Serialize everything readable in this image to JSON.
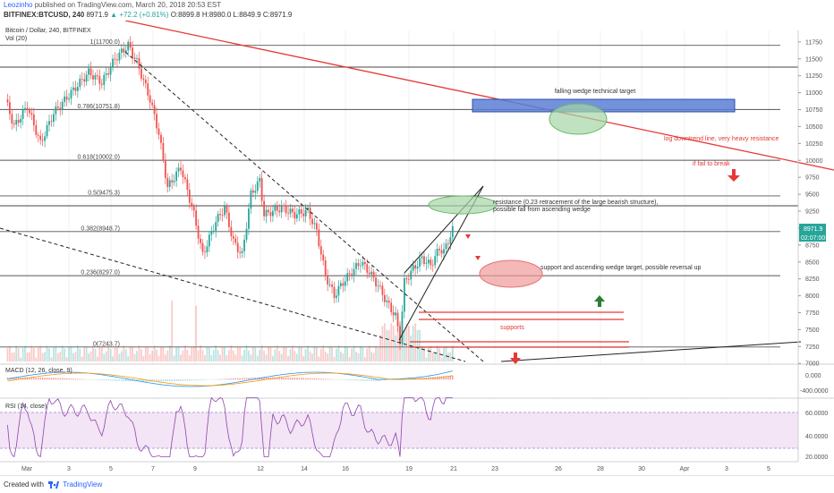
{
  "header": {
    "author": "Leozinho",
    "published": "published on TradingView.com, March 20, 2018 20:53 EST",
    "symbol": "BITFINEX:BTCUSD, 240",
    "last": "8971.9",
    "change": "▲ +72.2 (+0.81%)",
    "ohlc": "O:8899.8 H:8980.0 L:8849.9 C:8971.9"
  },
  "footer": {
    "created_with": "Created with",
    "brand": "TradingView"
  },
  "colors": {
    "up": "#26a69a",
    "down": "#ef5350",
    "trend": "#e53935",
    "fib": "#555555",
    "blue_box": "#5c7fd6",
    "green_ellipse": "#a5d6a7",
    "red_ellipse": "#ef9a9a",
    "macd": "#2196f3",
    "signal": "#ff9800",
    "rsi": "#8e44ad",
    "rsi_band": "#f3e5f5"
  },
  "chart_data": {
    "type": "candlestick",
    "title": "Bitcoin / Dollar, 240, BITFINEX",
    "volume_label": "Vol (20)",
    "x_ticks": [
      "Mar",
      "3",
      "5",
      "7",
      "9",
      "12",
      "14",
      "16",
      "19",
      "21",
      "23",
      "26",
      "28",
      "30",
      "Apr",
      "3",
      "5"
    ],
    "y_ticks": [
      7000,
      7250,
      7500,
      7750,
      8000,
      8250,
      8500,
      8750,
      9000,
      9250,
      9500,
      9750,
      10000,
      10250,
      10500,
      10750,
      11000,
      11250,
      11500,
      11750
    ],
    "ylim": [
      6990,
      11920
    ],
    "price_path": [
      {
        "t": 0,
        "p": 10900
      },
      {
        "t": 4,
        "p": 10500
      },
      {
        "t": 10,
        "p": 10800
      },
      {
        "t": 16,
        "p": 10250
      },
      {
        "t": 22,
        "p": 10700
      },
      {
        "t": 30,
        "p": 11000
      },
      {
        "t": 38,
        "p": 11300
      },
      {
        "t": 44,
        "p": 11150
      },
      {
        "t": 50,
        "p": 11500
      },
      {
        "t": 56,
        "p": 11700
      },
      {
        "t": 60,
        "p": 11450
      },
      {
        "t": 66,
        "p": 10900
      },
      {
        "t": 70,
        "p": 10400
      },
      {
        "t": 74,
        "p": 9600
      },
      {
        "t": 80,
        "p": 9900
      },
      {
        "t": 86,
        "p": 9200
      },
      {
        "t": 90,
        "p": 8600
      },
      {
        "t": 96,
        "p": 9100
      },
      {
        "t": 100,
        "p": 9300
      },
      {
        "t": 104,
        "p": 8800
      },
      {
        "t": 108,
        "p": 8600
      },
      {
        "t": 112,
        "p": 9500
      },
      {
        "t": 116,
        "p": 9700
      },
      {
        "t": 118,
        "p": 9200
      },
      {
        "t": 122,
        "p": 9250
      },
      {
        "t": 126,
        "p": 9300
      },
      {
        "t": 132,
        "p": 9200
      },
      {
        "t": 138,
        "p": 9250
      },
      {
        "t": 142,
        "p": 8950
      },
      {
        "t": 146,
        "p": 8300
      },
      {
        "t": 150,
        "p": 8000
      },
      {
        "t": 154,
        "p": 8200
      },
      {
        "t": 158,
        "p": 8350
      },
      {
        "t": 162,
        "p": 8500
      },
      {
        "t": 166,
        "p": 8350
      },
      {
        "t": 170,
        "p": 8150
      },
      {
        "t": 174,
        "p": 7900
      },
      {
        "t": 178,
        "p": 7700
      },
      {
        "t": 180,
        "p": 7350
      },
      {
        "t": 182,
        "p": 8200
      },
      {
        "t": 186,
        "p": 8400
      },
      {
        "t": 190,
        "p": 8550
      },
      {
        "t": 194,
        "p": 8450
      },
      {
        "t": 198,
        "p": 8700
      },
      {
        "t": 200,
        "p": 8650
      },
      {
        "t": 204,
        "p": 8972
      }
    ],
    "current_price": "8971.9",
    "current_time": "02:07:00",
    "fib_levels": [
      {
        "ratio": "1",
        "price": 11700,
        "label": "1(11700.0)"
      },
      {
        "ratio": "0.786",
        "price": 10751.8,
        "label": "0.786(10751.8)"
      },
      {
        "ratio": "0.618",
        "price": 10002,
        "label": "0.618(10002.0)"
      },
      {
        "ratio": "0.5",
        "price": 9475.3,
        "label": "0.5(9475.3)"
      },
      {
        "ratio": "0.382",
        "price": 8948.7,
        "label": "0.382(8948.7)"
      },
      {
        "ratio": "0.236",
        "price": 8297,
        "label": "0.236(8297.0)"
      },
      {
        "ratio": "0",
        "price": 7243.7,
        "label": "0(7243.7)"
      }
    ],
    "annotations": {
      "target": "falling wedge technical target",
      "downtrend": "log downtrend line, very heavy resistance",
      "if_fall": "if fail to break",
      "resistance_1": "resistance (0.23 retracement of the large bearish structure),",
      "resistance_2": "possible fall from ascending wedge",
      "support": "support and ascending wedge target, possible reversal up",
      "supports": "supports"
    },
    "macd": {
      "label": "MACD (12, 26, close, 9)",
      "ticks": [
        "0.000",
        "-400.0000"
      ]
    },
    "rsi": {
      "label": "RSI (14, close)",
      "ticks": [
        "60.0000",
        "40.0000",
        "20.0000"
      ]
    }
  }
}
